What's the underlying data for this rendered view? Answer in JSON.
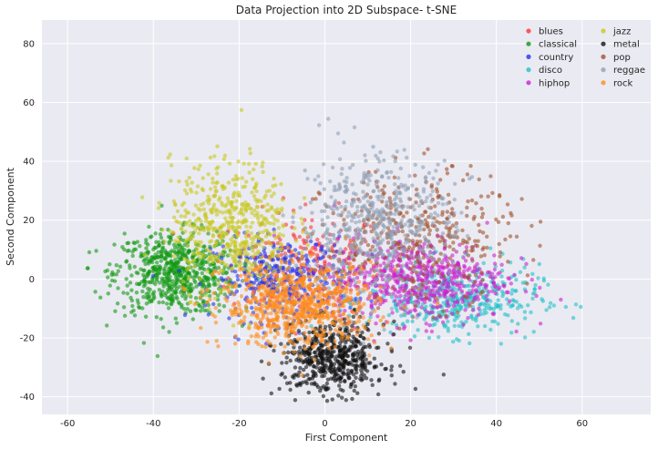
{
  "chart_data": {
    "type": "scatter",
    "title": "Data Projection into 2D Subspace- t-SNE",
    "xlabel": "First Component",
    "ylabel": "Second Component",
    "xlim": [
      -66,
      76
    ],
    "ylim": [
      -46,
      88
    ],
    "xticks": [
      -60,
      -40,
      -20,
      0,
      20,
      40,
      60
    ],
    "yticks": [
      -40,
      -20,
      0,
      20,
      40,
      60,
      80
    ],
    "grid": true,
    "background": "#eaeaf2",
    "legend_position": "top-right",
    "legend_columns": 2,
    "series": [
      {
        "name": "blues",
        "color": "#ff3333",
        "cluster": {
          "cx": -4,
          "cy": 5,
          "sx": 9,
          "sy": 9,
          "n": 220
        }
      },
      {
        "name": "classical",
        "color": "#119911",
        "cluster": {
          "cx": -35,
          "cy": 2,
          "sx": 7,
          "sy": 7,
          "n": 650
        }
      },
      {
        "name": "country",
        "color": "#2233ee",
        "cluster": {
          "cx": -10,
          "cy": 0,
          "sx": 8,
          "sy": 7,
          "n": 350
        }
      },
      {
        "name": "disco",
        "color": "#22c0c8",
        "cluster": {
          "cx": 30,
          "cy": -7,
          "sx": 10,
          "sy": 6,
          "n": 420
        }
      },
      {
        "name": "hiphop",
        "color": "#cc22cc",
        "cluster": {
          "cx": 22,
          "cy": 0,
          "sx": 10,
          "sy": 7,
          "n": 600
        }
      },
      {
        "name": "jazz",
        "color": "#c8c822",
        "cluster": {
          "cx": -22,
          "cy": 18,
          "sx": 7,
          "sy": 11,
          "n": 550
        }
      },
      {
        "name": "metal",
        "color": "#111111",
        "cluster": {
          "cx": 2,
          "cy": -27,
          "sx": 6,
          "sy": 6,
          "n": 550
        }
      },
      {
        "name": "pop",
        "color": "#a0522d",
        "cluster": {
          "cx": 22,
          "cy": 14,
          "sx": 11,
          "sy": 11,
          "n": 380
        }
      },
      {
        "name": "reggae",
        "color": "#8fa0b5",
        "cluster": {
          "cx": 12,
          "cy": 18,
          "sx": 9,
          "sy": 12,
          "n": 550
        }
      },
      {
        "name": "rock",
        "color": "#ff8c1a",
        "cluster": {
          "cx": -6,
          "cy": -9,
          "sx": 9,
          "sy": 7,
          "n": 750
        }
      }
    ]
  }
}
